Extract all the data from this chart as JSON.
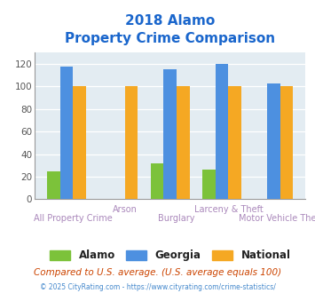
{
  "title_line1": "2018 Alamo",
  "title_line2": "Property Crime Comparison",
  "categories": [
    "All Property Crime",
    "Arson",
    "Burglary",
    "Larceny & Theft",
    "Motor Vehicle Theft"
  ],
  "alamo": [
    25,
    0,
    32,
    26,
    0
  ],
  "georgia": [
    118,
    0,
    115,
    120,
    103
  ],
  "national": [
    100,
    100,
    100,
    100,
    100
  ],
  "alamo_color": "#7cc23a",
  "georgia_color": "#4d90e0",
  "national_color": "#f5a823",
  "bg_color": "#e3ecf2",
  "title_color": "#1a66cc",
  "xlabel_top_color": "#aa88bb",
  "xlabel_bot_color": "#aa88bb",
  "footer_note": "Compared to U.S. average. (U.S. average equals 100)",
  "footer_copy": "© 2025 CityRating.com - https://www.cityrating.com/crime-statistics/",
  "ylim": [
    0,
    130
  ],
  "yticks": [
    0,
    20,
    40,
    60,
    80,
    100,
    120
  ],
  "group_labels_top": [
    "",
    "Arson",
    "",
    "Larceny & Theft",
    ""
  ],
  "group_labels_bot": [
    "All Property Crime",
    "",
    "Burglary",
    "",
    "Motor Vehicle Theft"
  ]
}
